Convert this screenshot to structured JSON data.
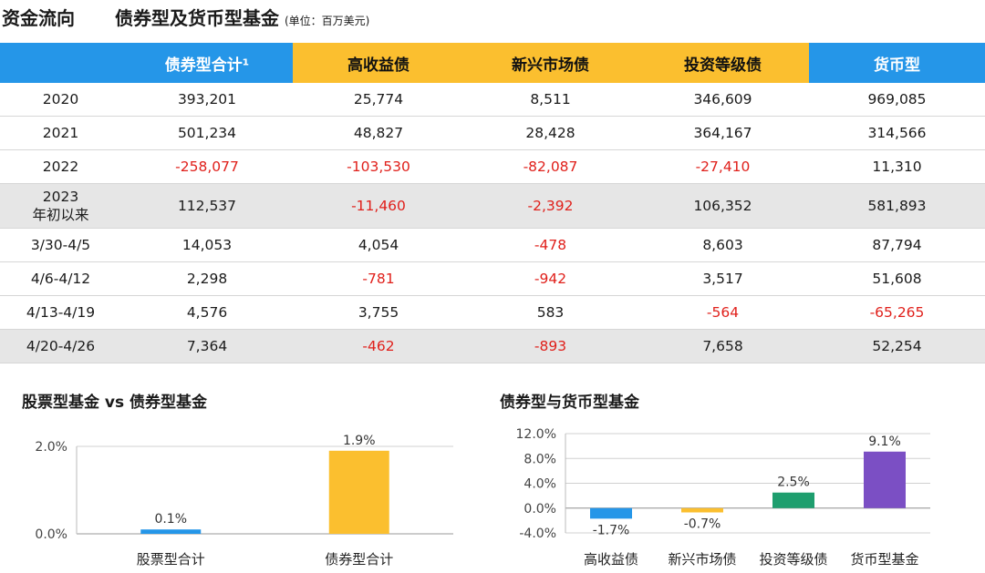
{
  "header": {
    "title": "资金流向",
    "subtitle": "债券型及货币型基金",
    "unit": "(单位：百万美元)"
  },
  "table": {
    "columns": [
      {
        "label": "",
        "style": "blue"
      },
      {
        "label": "债券型合计¹",
        "style": "blue"
      },
      {
        "label": "高收益债",
        "style": "gold"
      },
      {
        "label": "新兴市场债",
        "style": "gold"
      },
      {
        "label": "投资等级债",
        "style": "gold"
      },
      {
        "label": "货币型",
        "style": "blue"
      }
    ],
    "rows": [
      {
        "period": [
          "2020"
        ],
        "values": [
          "393,201",
          "25,774",
          "8,511",
          "346,609",
          "969,085"
        ],
        "negative": [
          false,
          false,
          false,
          false,
          false
        ],
        "shaded": false
      },
      {
        "period": [
          "2021"
        ],
        "values": [
          "501,234",
          "48,827",
          "28,428",
          "364,167",
          "314,566"
        ],
        "negative": [
          false,
          false,
          false,
          false,
          false
        ],
        "shaded": false
      },
      {
        "period": [
          "2022"
        ],
        "values": [
          "-258,077",
          "-103,530",
          "-82,087",
          "-27,410",
          "11,310"
        ],
        "negative": [
          true,
          true,
          true,
          true,
          false
        ],
        "shaded": false
      },
      {
        "period": [
          "2023",
          "年初以来"
        ],
        "values": [
          "112,537",
          "-11,460",
          "-2,392",
          "106,352",
          "581,893"
        ],
        "negative": [
          false,
          true,
          true,
          false,
          false
        ],
        "shaded": true
      },
      {
        "period": [
          "3/30-4/5"
        ],
        "values": [
          "14,053",
          "4,054",
          "-478",
          "8,603",
          "87,794"
        ],
        "negative": [
          false,
          false,
          true,
          false,
          false
        ],
        "shaded": false
      },
      {
        "period": [
          "4/6-4/12"
        ],
        "values": [
          "2,298",
          "-781",
          "-942",
          "3,517",
          "51,608"
        ],
        "negative": [
          false,
          true,
          true,
          false,
          false
        ],
        "shaded": false
      },
      {
        "period": [
          "4/13-4/19"
        ],
        "values": [
          "4,576",
          "3,755",
          "583",
          "-564",
          "-65,265"
        ],
        "negative": [
          false,
          false,
          false,
          true,
          true
        ],
        "shaded": false
      },
      {
        "period": [
          "4/20-4/26"
        ],
        "values": [
          "7,364",
          "-462",
          "-893",
          "7,658",
          "52,254"
        ],
        "negative": [
          false,
          true,
          true,
          false,
          false
        ],
        "shaded": true
      }
    ]
  },
  "chart_data": [
    {
      "type": "bar",
      "title": "股票型基金 vs 债券型基金",
      "categories": [
        "股票型合计",
        "债券型合计"
      ],
      "values": [
        0.1,
        1.9
      ],
      "value_labels": [
        "0.1%",
        "1.9%"
      ],
      "colors": [
        "#2596e8",
        "#fbbf2f"
      ],
      "ylim": [
        0,
        2.0
      ],
      "yticks": [
        0,
        2.0
      ],
      "ytick_labels": [
        "0.0%",
        "2.0%"
      ],
      "grid": true
    },
    {
      "type": "bar",
      "title": "债券型与货币型基金",
      "categories": [
        "高收益债",
        "新兴市场债",
        "投资等级债",
        "货币型基金"
      ],
      "values": [
        -1.7,
        -0.7,
        2.5,
        9.1
      ],
      "value_labels": [
        "-1.7%",
        "-0.7%",
        "2.5%",
        "9.1%"
      ],
      "colors": [
        "#2596e8",
        "#fbbf2f",
        "#1e9e6e",
        "#7b4fc4"
      ],
      "ylim": [
        -4.0,
        12.0
      ],
      "yticks": [
        -4,
        0,
        4,
        8,
        12
      ],
      "ytick_labels": [
        "-4.0%",
        "0.0%",
        "4.0%",
        "8.0%",
        "12.0%"
      ],
      "grid": true
    }
  ]
}
